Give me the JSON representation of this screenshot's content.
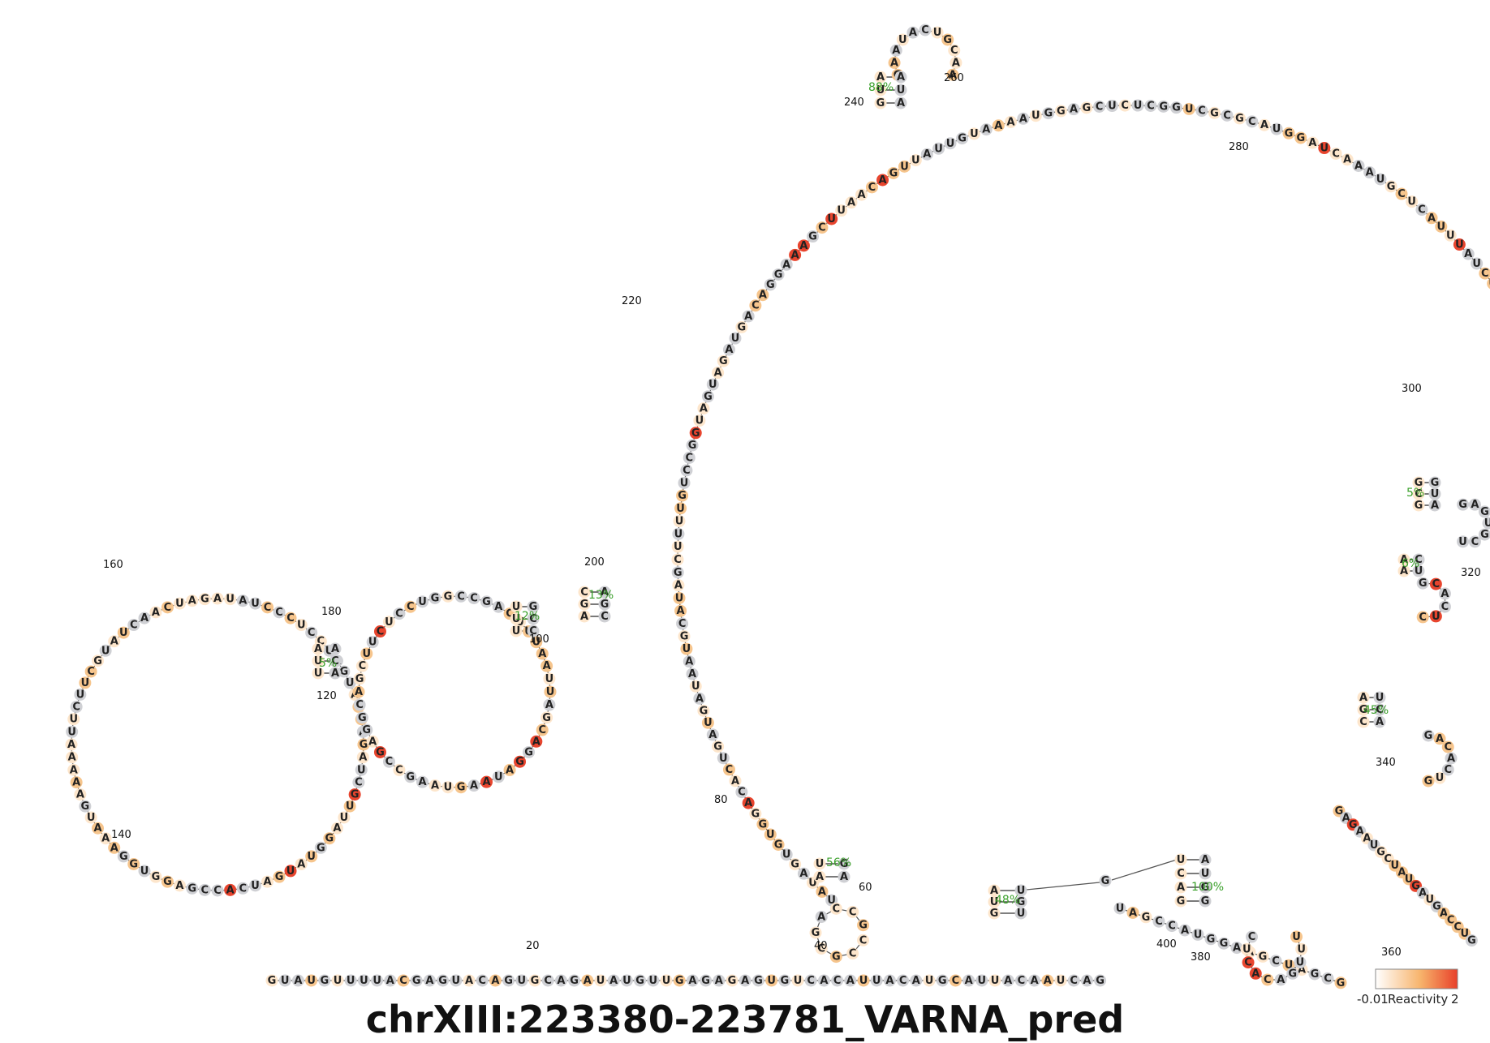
{
  "title": "chrXIII:223380-223781_VARNA_pred",
  "legend": {
    "name": "Reactivity",
    "min_label": "-0.01",
    "max_label": "2",
    "colors": [
      "#ffffff",
      "#f7b36b",
      "#e8402a"
    ]
  },
  "colors": {
    "gray": "#cfd0d4",
    "light": "#fde6cc",
    "mid": "#f6c58d",
    "high": "#e8452e",
    "backbone": "#555555",
    "prob": "#3aa02a"
  },
  "sequence": "GUAUGUUUUACGAGUACAGUGCAGAUAUGUUGAGAGAGUGUCACAUUACAUGCAUUACAAUCAG",
  "position_labels": [
    {
      "n": "20"
    },
    {
      "n": "40"
    },
    {
      "n": "60"
    },
    {
      "n": "80"
    },
    {
      "n": "100"
    },
    {
      "n": "120"
    },
    {
      "n": "140"
    },
    {
      "n": "160"
    },
    {
      "n": "180"
    },
    {
      "n": "200"
    },
    {
      "n": "220"
    },
    {
      "n": "240"
    },
    {
      "n": "260"
    },
    {
      "n": "280"
    },
    {
      "n": "300"
    },
    {
      "n": "320"
    },
    {
      "n": "340"
    },
    {
      "n": "360"
    },
    {
      "n": "380"
    },
    {
      "n": "400"
    }
  ],
  "probability_labels": [
    "88%",
    "56%",
    "48%",
    "100%",
    "5%",
    "12%",
    "13%",
    "5%",
    "6%",
    "45%"
  ]
}
